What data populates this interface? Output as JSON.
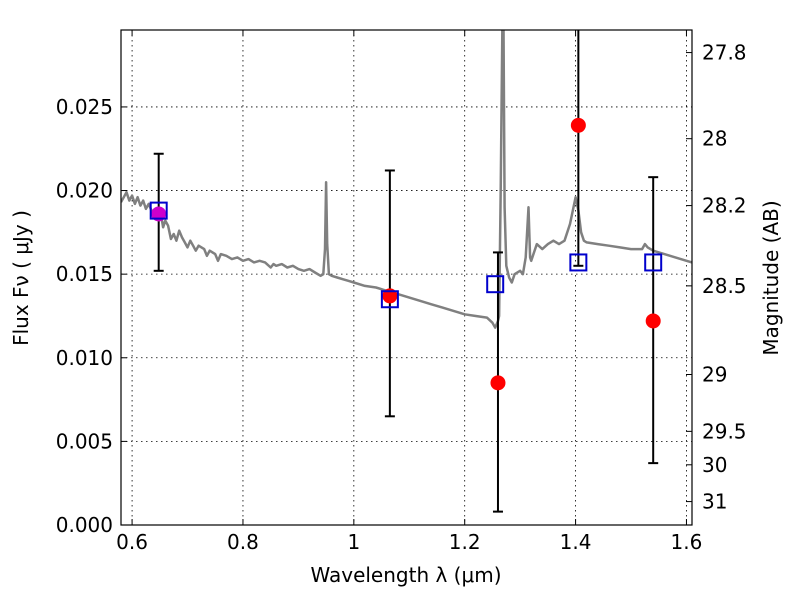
{
  "chart_data": {
    "type": "scatter",
    "title": "",
    "xlabel": "Wavelength  λ (μm)",
    "ylabel": "Flux  Fν  ( μJy )",
    "ylabel_right": "Magnitude (AB)",
    "xlim": [
      0.58,
      1.61
    ],
    "ylim": [
      0.0,
      0.0296
    ],
    "x_ticks": [
      0.6,
      0.8,
      1.0,
      1.2,
      1.4,
      1.6
    ],
    "x_tick_labels": [
      "0.6",
      "0.8",
      "1",
      "1.2",
      "1.4",
      "1.6"
    ],
    "y_ticks": [
      0.0,
      0.005,
      0.01,
      0.015,
      0.02,
      0.025
    ],
    "y_tick_labels": [
      "0.000",
      "0.005",
      "0.010",
      "0.015",
      "0.020",
      "0.025"
    ],
    "magnitude_ticks": [
      {
        "flux": 0.02825,
        "label": "27.8"
      },
      {
        "flux": 0.0231,
        "label": "28"
      },
      {
        "flux": 0.0191,
        "label": "28.2"
      },
      {
        "flux": 0.0143,
        "label": "28.5"
      },
      {
        "flux": 0.009,
        "label": "29"
      },
      {
        "flux": 0.0056,
        "label": "29.5"
      },
      {
        "flux": 0.0036,
        "label": "30"
      },
      {
        "flux": 0.0014,
        "label": "31"
      }
    ],
    "grid": true,
    "series": [
      {
        "kind": "spectrum-line",
        "color": "#808080",
        "points": [
          [
            0.58,
            0.0193
          ],
          [
            0.585,
            0.0196
          ],
          [
            0.59,
            0.0199
          ],
          [
            0.595,
            0.0194
          ],
          [
            0.6,
            0.0197
          ],
          [
            0.605,
            0.0192
          ],
          [
            0.61,
            0.0196
          ],
          [
            0.615,
            0.0191
          ],
          [
            0.62,
            0.0194
          ],
          [
            0.625,
            0.0189
          ],
          [
            0.63,
            0.0192
          ],
          [
            0.635,
            0.0188
          ],
          [
            0.64,
            0.0186
          ],
          [
            0.645,
            0.0185
          ],
          [
            0.648,
            0.0183
          ],
          [
            0.652,
            0.0186
          ],
          [
            0.656,
            0.0178
          ],
          [
            0.66,
            0.0182
          ],
          [
            0.665,
            0.0179
          ],
          [
            0.67,
            0.0171
          ],
          [
            0.675,
            0.0174
          ],
          [
            0.68,
            0.017
          ],
          [
            0.685,
            0.0176
          ],
          [
            0.69,
            0.0172
          ],
          [
            0.695,
            0.0169
          ],
          [
            0.7,
            0.0166
          ],
          [
            0.705,
            0.017
          ],
          [
            0.71,
            0.0167
          ],
          [
            0.715,
            0.0164
          ],
          [
            0.72,
            0.0167
          ],
          [
            0.73,
            0.0165
          ],
          [
            0.735,
            0.0161
          ],
          [
            0.74,
            0.0164
          ],
          [
            0.75,
            0.0162
          ],
          [
            0.755,
            0.0158
          ],
          [
            0.76,
            0.0162
          ],
          [
            0.77,
            0.0161
          ],
          [
            0.78,
            0.0159
          ],
          [
            0.79,
            0.016
          ],
          [
            0.8,
            0.0158
          ],
          [
            0.81,
            0.0159
          ],
          [
            0.82,
            0.0157
          ],
          [
            0.83,
            0.0158
          ],
          [
            0.84,
            0.0157
          ],
          [
            0.85,
            0.0154
          ],
          [
            0.855,
            0.0156
          ],
          [
            0.86,
            0.0155
          ],
          [
            0.87,
            0.0156
          ],
          [
            0.88,
            0.0154
          ],
          [
            0.89,
            0.0155
          ],
          [
            0.9,
            0.0153
          ],
          [
            0.91,
            0.0152
          ],
          [
            0.92,
            0.0153
          ],
          [
            0.93,
            0.0151
          ],
          [
            0.94,
            0.0149
          ],
          [
            0.945,
            0.015
          ],
          [
            0.948,
            0.0165
          ],
          [
            0.95,
            0.0205
          ],
          [
            0.952,
            0.0168
          ],
          [
            0.955,
            0.015
          ],
          [
            0.96,
            0.0149
          ],
          [
            0.97,
            0.0148
          ],
          [
            0.98,
            0.0147
          ],
          [
            0.99,
            0.0146
          ],
          [
            1.0,
            0.0145
          ],
          [
            1.02,
            0.0143
          ],
          [
            1.04,
            0.0142
          ],
          [
            1.06,
            0.014
          ],
          [
            1.08,
            0.0138
          ],
          [
            1.1,
            0.0136
          ],
          [
            1.12,
            0.0134
          ],
          [
            1.14,
            0.0132
          ],
          [
            1.16,
            0.013
          ],
          [
            1.18,
            0.0128
          ],
          [
            1.2,
            0.0126
          ],
          [
            1.22,
            0.0125
          ],
          [
            1.24,
            0.0124
          ],
          [
            1.25,
            0.0121
          ],
          [
            1.255,
            0.0118
          ],
          [
            1.26,
            0.0122
          ],
          [
            1.262,
            0.0125
          ],
          [
            1.265,
            0.02
          ],
          [
            1.268,
            0.03
          ],
          [
            1.27,
            0.03
          ],
          [
            1.272,
            0.019
          ],
          [
            1.275,
            0.0155
          ],
          [
            1.28,
            0.0148
          ],
          [
            1.285,
            0.0145
          ],
          [
            1.29,
            0.015
          ],
          [
            1.3,
            0.0152
          ],
          [
            1.305,
            0.015
          ],
          [
            1.31,
            0.016
          ],
          [
            1.315,
            0.019
          ],
          [
            1.318,
            0.016
          ],
          [
            1.32,
            0.0158
          ],
          [
            1.33,
            0.0168
          ],
          [
            1.34,
            0.0165
          ],
          [
            1.35,
            0.0168
          ],
          [
            1.36,
            0.017
          ],
          [
            1.37,
            0.0168
          ],
          [
            1.38,
            0.017
          ],
          [
            1.39,
            0.018
          ],
          [
            1.4,
            0.0196
          ],
          [
            1.405,
            0.0188
          ],
          [
            1.41,
            0.0175
          ],
          [
            1.415,
            0.017
          ],
          [
            1.42,
            0.0169
          ],
          [
            1.44,
            0.0168
          ],
          [
            1.46,
            0.0167
          ],
          [
            1.48,
            0.0166
          ],
          [
            1.5,
            0.0165
          ],
          [
            1.52,
            0.0165
          ],
          [
            1.525,
            0.0168
          ],
          [
            1.53,
            0.0166
          ],
          [
            1.54,
            0.0164
          ],
          [
            1.56,
            0.0162
          ],
          [
            1.58,
            0.016
          ],
          [
            1.6,
            0.0158
          ],
          [
            1.61,
            0.0157
          ]
        ]
      },
      {
        "kind": "model-photometry",
        "marker": "open-square",
        "color": "#0000cc",
        "points": [
          [
            0.648,
            0.0188
          ],
          [
            1.065,
            0.0135
          ],
          [
            1.255,
            0.0144
          ],
          [
            1.405,
            0.0157
          ],
          [
            1.54,
            0.0157
          ]
        ]
      },
      {
        "kind": "observed-photometry",
        "marker": "filled-circle",
        "color": "#ff0000",
        "points": [
          {
            "x": 0.648,
            "y": 0.0186,
            "ylow": 0.0152,
            "yhigh": 0.0222,
            "color": "#cc00cc"
          },
          {
            "x": 1.065,
            "y": 0.0137,
            "ylow": 0.0065,
            "yhigh": 0.0212
          },
          {
            "x": 1.26,
            "y": 0.0085,
            "ylow": 0.0008,
            "yhigh": 0.0163
          },
          {
            "x": 1.405,
            "y": 0.0239,
            "ylow": 0.0155,
            "yhigh": 0.03
          },
          {
            "x": 1.54,
            "y": 0.0122,
            "ylow": 0.0037,
            "yhigh": 0.0208
          }
        ]
      }
    ]
  }
}
